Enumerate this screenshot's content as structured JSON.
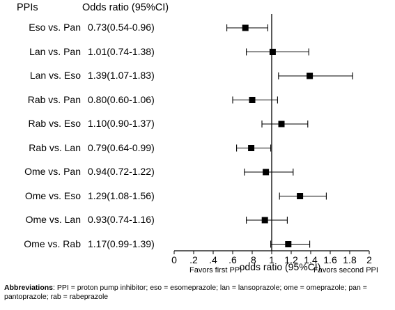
{
  "chart_data": {
    "type": "forest",
    "columns": {
      "label_header": "PPIs",
      "value_header": "Odds ratio (95%CI)"
    },
    "rows": [
      {
        "label": "Eso vs. Pan",
        "text": "0.73(0.54-0.96)",
        "or": 0.73,
        "lo": 0.54,
        "hi": 0.96
      },
      {
        "label": "Lan vs. Pan",
        "text": "1.01(0.74-1.38)",
        "or": 1.01,
        "lo": 0.74,
        "hi": 1.38
      },
      {
        "label": "Lan vs. Eso",
        "text": "1.39(1.07-1.83)",
        "or": 1.39,
        "lo": 1.07,
        "hi": 1.83
      },
      {
        "label": "Rab vs. Pan",
        "text": "0.80(0.60-1.06)",
        "or": 0.8,
        "lo": 0.6,
        "hi": 1.06
      },
      {
        "label": "Rab vs. Eso",
        "text": "1.10(0.90-1.37)",
        "or": 1.1,
        "lo": 0.9,
        "hi": 1.37
      },
      {
        "label": "Rab vs. Lan",
        "text": "0.79(0.64-0.99)",
        "or": 0.79,
        "lo": 0.64,
        "hi": 0.99
      },
      {
        "label": "Ome vs. Pan",
        "text": "0.94(0.72-1.22)",
        "or": 0.94,
        "lo": 0.72,
        "hi": 1.22
      },
      {
        "label": "Ome vs. Eso",
        "text": "1.29(1.08-1.56)",
        "or": 1.29,
        "lo": 1.08,
        "hi": 1.56
      },
      {
        "label": "Ome vs. Lan",
        "text": "0.93(0.74-1.16)",
        "or": 0.93,
        "lo": 0.74,
        "hi": 1.16
      },
      {
        "label": "Ome vs. Rab",
        "text": "1.17(0.99-1.39)",
        "or": 1.17,
        "lo": 0.99,
        "hi": 1.39
      }
    ],
    "xlim": [
      0,
      2
    ],
    "xticks": [
      0,
      0.2,
      0.4,
      0.6,
      0.8,
      1,
      1.2,
      1.4,
      1.6,
      1.8,
      2
    ],
    "xtick_labels": [
      "0",
      ".2",
      ".4",
      ".6",
      ".8",
      "1",
      "1.2",
      "1.4",
      "1.6",
      "1.8",
      "2"
    ],
    "reference_line": 1,
    "xlabel": "odds ratio (95%CI)",
    "favors_left": "Favors first PPI",
    "favors_right": "Favors second PPI"
  },
  "notes": {
    "lead": "Abbreviations",
    "text": ": PPI = proton pump inhibitor; eso = esomeprazole; lan = lansoprazole; ome = omeprazole; pan = pantoprazole; rab = rabeprazole"
  }
}
